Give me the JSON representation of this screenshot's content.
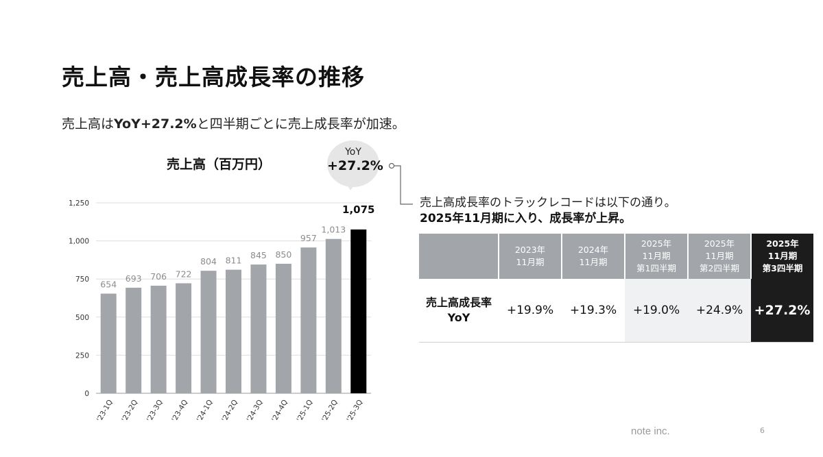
{
  "slide": {
    "title": "売上高・売上高成長率の推移",
    "subtitle_pre": "売上高は",
    "subtitle_bold": "YoY+27.2%",
    "subtitle_post": "と四半期ごとに売上成長率が加速。",
    "footer_brand": "note inc.",
    "page_number": "6"
  },
  "bubble": {
    "label": "YoY",
    "value": "+27.2%"
  },
  "callout": {
    "line1": "売上高成長率のトラックレコードは以下の通り。",
    "line2": "2025年11月期に入り、成長率が上昇。"
  },
  "chart_data": {
    "type": "bar",
    "title": "売上高（百万円）",
    "categories": [
      "'23-1Q",
      "'23-2Q",
      "'23-3Q",
      "'23-4Q",
      "'24-1Q",
      "'24-2Q",
      "'24-3Q",
      "'24-4Q",
      "'25-1Q",
      "'25-2Q",
      "'25-3Q"
    ],
    "values": [
      654,
      693,
      706,
      722,
      804,
      811,
      845,
      850,
      957,
      1013,
      1075
    ],
    "value_labels": [
      "654",
      "693",
      "706",
      "722",
      "804",
      "811",
      "845",
      "850",
      "957",
      "1,013",
      "1,075"
    ],
    "highlight_index": 10,
    "ylim": [
      0,
      1250
    ],
    "yticks": [
      0,
      250,
      500,
      750,
      1000,
      1250
    ],
    "ytick_labels": [
      "0",
      "250",
      "500",
      "750",
      "1,000",
      "1,250"
    ],
    "grid": true,
    "colors": {
      "bar": "#a2a6aa",
      "highlight": "#000000",
      "label": "#8c8c8c",
      "highlight_label": "#111111",
      "grid": "#dddddd"
    }
  },
  "table": {
    "columns": [
      {
        "lines": [
          "2023年",
          "11月期"
        ]
      },
      {
        "lines": [
          "2024年",
          "11月期"
        ]
      },
      {
        "lines": [
          "2025年",
          "11月期",
          "第1四半期"
        ]
      },
      {
        "lines": [
          "2025年",
          "11月期",
          "第2四半期"
        ]
      },
      {
        "lines": [
          "2025年",
          "11月期",
          "第3四半期"
        ]
      }
    ],
    "row_label_lines": [
      "売上高成長率",
      "YoY"
    ],
    "values": [
      "+19.9%",
      "+19.3%",
      "+19.0%",
      "+24.9%",
      "+27.2%"
    ],
    "colors": {
      "header": "#a2a6aa",
      "highlight": "#1c1c1c",
      "shade": "#f0f1f2"
    }
  }
}
